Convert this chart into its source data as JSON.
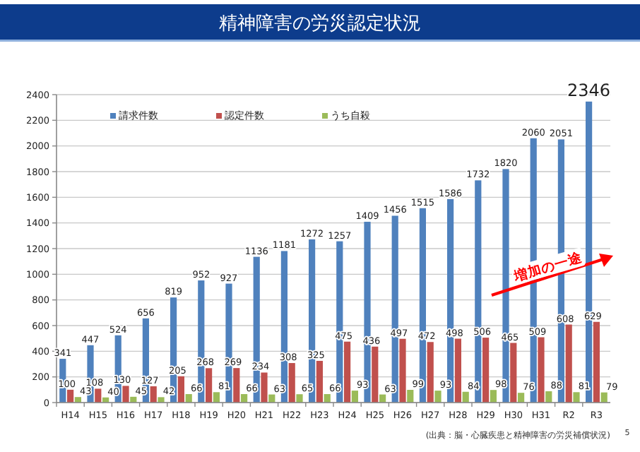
{
  "chart_data": {
    "type": "bar",
    "title": "精神障害の労災認定状況",
    "categories": [
      "H14",
      "H15",
      "H16",
      "H17",
      "H18",
      "H19",
      "H20",
      "H21",
      "H22",
      "H23",
      "H24",
      "H25",
      "H26",
      "H27",
      "H28",
      "H29",
      "H30",
      "H31",
      "R2",
      "R3"
    ],
    "series": [
      {
        "name": "請求件数",
        "color": "#4f81bd",
        "values": [
          341,
          447,
          524,
          656,
          819,
          952,
          927,
          1136,
          1181,
          1272,
          1257,
          1409,
          1456,
          1515,
          1586,
          1732,
          1820,
          2060,
          2051,
          2346
        ]
      },
      {
        "name": "認定件数",
        "color": "#c0504d",
        "values": [
          100,
          108,
          130,
          127,
          205,
          268,
          269,
          234,
          308,
          325,
          475,
          436,
          497,
          472,
          498,
          506,
          465,
          509,
          608,
          629
        ]
      },
      {
        "name": "うち自殺",
        "color": "#9bbb59",
        "values": [
          43,
          40,
          45,
          42,
          66,
          81,
          66,
          63,
          65,
          66,
          93,
          63,
          99,
          93,
          84,
          98,
          76,
          88,
          81,
          79
        ]
      }
    ],
    "ylim": [
      0,
      2400
    ],
    "yticks": [
      0,
      200,
      400,
      600,
      800,
      1000,
      1200,
      1400,
      1600,
      1800,
      2000,
      2200,
      2400
    ],
    "grid": "y",
    "legend": "top left",
    "data_labels": true,
    "annotations": [
      "増加の一途",
      "(出典：脳・心臓疾患と精神障害の労災補償状況)",
      "5"
    ]
  }
}
